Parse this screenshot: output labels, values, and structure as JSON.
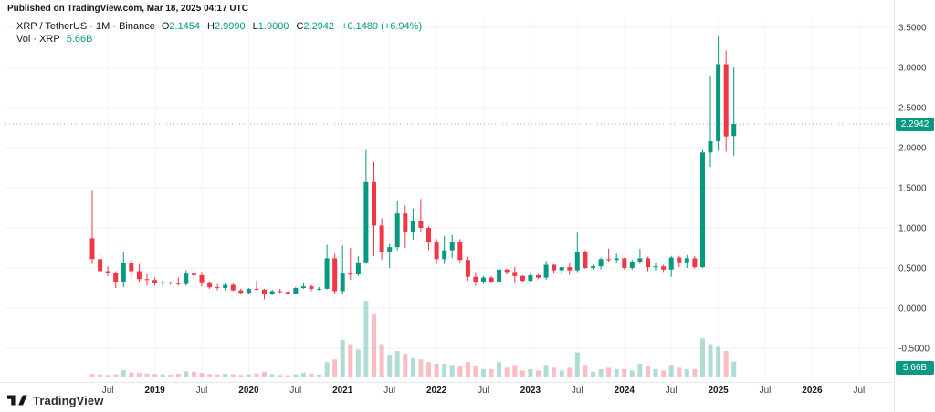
{
  "page": {
    "published_line": "Published on TradingView.com, Mar 18, 2025 04:17 UTC",
    "brand_footer": "TradingView"
  },
  "legend": {
    "symbol_line": "XRP / TetherUS · 1M · Binance",
    "ohlc": {
      "o_label": "O",
      "o": "2.1454",
      "h_label": "H",
      "h": "2.9990",
      "l_label": "L",
      "l": "1.9000",
      "c_label": "C",
      "c": "2.2942",
      "change": "+0.1489 (+6.94%)"
    },
    "volume_line": "Vol · XRP",
    "volume_value": "5.66B"
  },
  "axis": {
    "last_price": "2.2942",
    "last_volume": "5.66B"
  },
  "colors": {
    "up": "#089981",
    "down": "#F23645",
    "badge_text": "#ffffff"
  },
  "chart_data": {
    "type": "candlestick",
    "title": "XRP / TetherUS · 1M · Binance",
    "symbol": "XRP / TetherUS",
    "interval": "1M",
    "exchange": "Binance",
    "start_month": "2018-05",
    "ylim": [
      -0.5,
      3.5
    ],
    "grid": true,
    "last_close": 2.2942,
    "y_ticks": [
      {
        "v": 3.5,
        "label": "3.5000"
      },
      {
        "v": 3.0,
        "label": "3.0000"
      },
      {
        "v": 2.5,
        "label": "2.5000"
      },
      {
        "v": 2.0,
        "label": "2.0000"
      },
      {
        "v": 1.5,
        "label": "1.5000"
      },
      {
        "v": 1.0,
        "label": "1.0000"
      },
      {
        "v": 0.5,
        "label": "0.5000"
      },
      {
        "v": 0.0,
        "label": "0.0000"
      },
      {
        "v": -0.5,
        "label": "-0.5000"
      }
    ],
    "x_ticks": [
      {
        "i": 2,
        "label": "Jul"
      },
      {
        "i": 8,
        "label": "2019",
        "year": true
      },
      {
        "i": 14,
        "label": "Jul"
      },
      {
        "i": 20,
        "label": "2020",
        "year": true
      },
      {
        "i": 26,
        "label": "Jul"
      },
      {
        "i": 32,
        "label": "2021",
        "year": true
      },
      {
        "i": 38,
        "label": "Jul"
      },
      {
        "i": 44,
        "label": "2022",
        "year": true
      },
      {
        "i": 50,
        "label": "Jul"
      },
      {
        "i": 56,
        "label": "2023",
        "year": true
      },
      {
        "i": 62,
        "label": "Jul"
      },
      {
        "i": 68,
        "label": "2024",
        "year": true
      },
      {
        "i": 74,
        "label": "Jul"
      },
      {
        "i": 80,
        "label": "2025",
        "year": true
      },
      {
        "i": 86,
        "label": "Jul"
      },
      {
        "i": 92,
        "label": "2026",
        "year": true
      },
      {
        "i": 98,
        "label": "Jul"
      }
    ],
    "ohlc": [
      [
        0.87,
        1.47,
        0.55,
        0.61
      ],
      [
        0.61,
        0.7,
        0.45,
        0.46
      ],
      [
        0.46,
        0.52,
        0.4,
        0.44
      ],
      [
        0.44,
        0.46,
        0.25,
        0.33
      ],
      [
        0.33,
        0.7,
        0.26,
        0.56
      ],
      [
        0.56,
        0.6,
        0.4,
        0.46
      ],
      [
        0.46,
        0.55,
        0.33,
        0.36
      ],
      [
        0.36,
        0.42,
        0.28,
        0.35
      ],
      [
        0.35,
        0.38,
        0.28,
        0.31
      ],
      [
        0.31,
        0.34,
        0.28,
        0.32
      ],
      [
        0.32,
        0.33,
        0.29,
        0.31
      ],
      [
        0.31,
        0.38,
        0.28,
        0.3
      ],
      [
        0.3,
        0.47,
        0.28,
        0.43
      ],
      [
        0.43,
        0.49,
        0.36,
        0.41
      ],
      [
        0.41,
        0.45,
        0.27,
        0.32
      ],
      [
        0.32,
        0.33,
        0.24,
        0.26
      ],
      [
        0.26,
        0.3,
        0.22,
        0.25
      ],
      [
        0.25,
        0.31,
        0.22,
        0.29
      ],
      [
        0.29,
        0.31,
        0.21,
        0.22
      ],
      [
        0.22,
        0.24,
        0.18,
        0.19
      ],
      [
        0.19,
        0.25,
        0.18,
        0.24
      ],
      [
        0.24,
        0.34,
        0.22,
        0.23
      ],
      [
        0.23,
        0.24,
        0.11,
        0.17
      ],
      [
        0.17,
        0.23,
        0.16,
        0.21
      ],
      [
        0.21,
        0.24,
        0.19,
        0.2
      ],
      [
        0.2,
        0.21,
        0.17,
        0.18
      ],
      [
        0.18,
        0.26,
        0.17,
        0.25
      ],
      [
        0.25,
        0.32,
        0.24,
        0.27
      ],
      [
        0.27,
        0.29,
        0.21,
        0.24
      ],
      [
        0.24,
        0.26,
        0.22,
        0.24
      ],
      [
        0.24,
        0.79,
        0.23,
        0.62
      ],
      [
        0.62,
        0.68,
        0.17,
        0.21
      ],
      [
        0.21,
        0.78,
        0.17,
        0.43
      ],
      [
        0.43,
        0.75,
        0.35,
        0.42
      ],
      [
        0.42,
        0.65,
        0.4,
        0.57
      ],
      [
        0.57,
        1.97,
        0.55,
        1.57
      ],
      [
        1.57,
        1.82,
        0.65,
        1.03
      ],
      [
        1.03,
        1.12,
        0.6,
        0.7
      ],
      [
        0.7,
        0.8,
        0.5,
        0.76
      ],
      [
        0.76,
        1.34,
        0.72,
        1.18
      ],
      [
        1.18,
        1.28,
        0.75,
        0.95
      ],
      [
        0.95,
        1.24,
        0.85,
        1.08
      ],
      [
        1.08,
        1.36,
        0.95,
        1.0
      ],
      [
        1.0,
        1.02,
        0.72,
        0.83
      ],
      [
        0.83,
        0.86,
        0.55,
        0.61
      ],
      [
        0.61,
        0.9,
        0.55,
        0.72
      ],
      [
        0.72,
        0.91,
        0.62,
        0.83
      ],
      [
        0.83,
        0.86,
        0.57,
        0.6
      ],
      [
        0.6,
        0.64,
        0.34,
        0.39
      ],
      [
        0.39,
        0.45,
        0.28,
        0.33
      ],
      [
        0.33,
        0.4,
        0.3,
        0.38
      ],
      [
        0.38,
        0.4,
        0.32,
        0.33
      ],
      [
        0.33,
        0.56,
        0.31,
        0.48
      ],
      [
        0.48,
        0.49,
        0.42,
        0.45
      ],
      [
        0.45,
        0.51,
        0.32,
        0.4
      ],
      [
        0.4,
        0.41,
        0.33,
        0.34
      ],
      [
        0.34,
        0.43,
        0.33,
        0.41
      ],
      [
        0.41,
        0.42,
        0.36,
        0.38
      ],
      [
        0.38,
        0.59,
        0.35,
        0.54
      ],
      [
        0.54,
        0.55,
        0.44,
        0.47
      ],
      [
        0.47,
        0.51,
        0.42,
        0.51
      ],
      [
        0.51,
        0.56,
        0.41,
        0.47
      ],
      [
        0.47,
        0.94,
        0.45,
        0.7
      ],
      [
        0.7,
        0.72,
        0.49,
        0.5
      ],
      [
        0.5,
        0.54,
        0.48,
        0.52
      ],
      [
        0.52,
        0.63,
        0.48,
        0.61
      ],
      [
        0.61,
        0.74,
        0.58,
        0.6
      ],
      [
        0.6,
        0.68,
        0.56,
        0.62
      ],
      [
        0.62,
        0.63,
        0.48,
        0.5
      ],
      [
        0.5,
        0.6,
        0.48,
        0.58
      ],
      [
        0.58,
        0.74,
        0.55,
        0.62
      ],
      [
        0.62,
        0.64,
        0.46,
        0.51
      ],
      [
        0.51,
        0.57,
        0.47,
        0.52
      ],
      [
        0.52,
        0.54,
        0.45,
        0.48
      ],
      [
        0.48,
        0.65,
        0.39,
        0.63
      ],
      [
        0.63,
        0.65,
        0.51,
        0.57
      ],
      [
        0.57,
        0.66,
        0.5,
        0.62
      ],
      [
        0.62,
        0.65,
        0.49,
        0.51
      ],
      [
        0.51,
        1.97,
        0.5,
        1.94
      ],
      [
        1.94,
        2.9,
        1.76,
        2.08
      ],
      [
        2.08,
        3.4,
        1.96,
        3.04
      ],
      [
        3.04,
        3.21,
        1.95,
        2.14
      ],
      [
        2.1454,
        2.999,
        1.9,
        2.2942
      ]
    ],
    "volume_billions": [
      1.2,
      1.0,
      0.9,
      1.1,
      2.6,
      1.8,
      1.6,
      1.4,
      1.2,
      1.1,
      1.0,
      1.3,
      2.2,
      2.0,
      1.6,
      1.2,
      1.1,
      1.3,
      1.1,
      0.9,
      1.1,
      1.4,
      2.0,
      1.2,
      0.9,
      0.8,
      1.1,
      1.6,
      1.3,
      1.0,
      5.5,
      6.5,
      13.5,
      12.0,
      10.0,
      27.5,
      23.0,
      12.0,
      8.0,
      9.5,
      8.5,
      7.0,
      6.5,
      5.5,
      5.0,
      5.0,
      4.5,
      4.0,
      5.5,
      4.0,
      3.0,
      3.0,
      5.5,
      3.5,
      4.5,
      2.5,
      3.0,
      2.5,
      4.5,
      3.5,
      2.5,
      3.5,
      9.0,
      4.5,
      2.0,
      3.0,
      3.5,
      3.0,
      3.0,
      2.5,
      5.0,
      4.0,
      3.0,
      2.5,
      4.5,
      3.5,
      3.0,
      3.0,
      14.0,
      12.0,
      11.0,
      9.5,
      5.66
    ]
  }
}
